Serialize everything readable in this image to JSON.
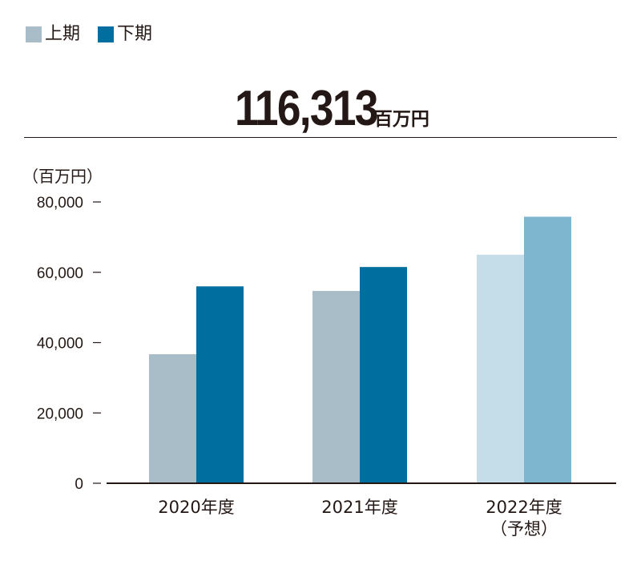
{
  "legend": {
    "items": [
      {
        "label": "上期",
        "color": "#a8bdc8"
      },
      {
        "label": "下期",
        "color": "#006e9f"
      }
    ]
  },
  "headline": {
    "value": "116,313",
    "unit": "百万円"
  },
  "chart_data": {
    "type": "bar",
    "y_unit_label": "（百万円）",
    "categories": [
      "2020年度",
      "2021年度",
      "2022年度\n（予想）"
    ],
    "series": [
      {
        "name": "上期",
        "values": [
          36700,
          54700,
          65000
        ],
        "colors": [
          "#a8bdc8",
          "#a8bdc8",
          "#c5dde9"
        ]
      },
      {
        "name": "下期",
        "values": [
          56000,
          61500,
          75800
        ],
        "colors": [
          "#006e9f",
          "#006e9f",
          "#7eb5cf"
        ]
      }
    ],
    "ylim": [
      0,
      80000
    ],
    "yticks": [
      0,
      20000,
      40000,
      60000,
      80000
    ],
    "ytick_labels": [
      "0",
      "20,000",
      "40,000",
      "60,000",
      "80,000"
    ],
    "grid": false,
    "legend_position": "top-left"
  }
}
